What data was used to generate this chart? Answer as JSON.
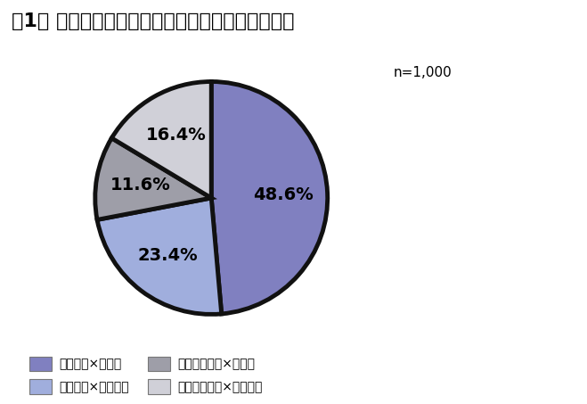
{
  "title": "図1． かぜをひいたら休みたいか、休める環境か？",
  "values": [
    48.6,
    23.4,
    11.6,
    16.4
  ],
  "labels": [
    "48.6%",
    "23.4%",
    "11.6%",
    "16.4%"
  ],
  "colors": [
    "#8080C0",
    "#A0AEDD",
    "#9E9EA8",
    "#D0D0D8"
  ],
  "edge_color": "#111111",
  "edge_width": 3.5,
  "startangle": 90,
  "n_label": "n=1,000",
  "legend_labels": [
    "休みたい×休める",
    "休みたい×休めない",
    "休みたくない×休める",
    "休みたくない×休めない"
  ],
  "legend_colors": [
    "#8080C0",
    "#A0AEDD",
    "#9E9EA8",
    "#D0D0D8"
  ],
  "label_fontsize": 14,
  "title_fontsize": 16,
  "background_color": "#ffffff"
}
